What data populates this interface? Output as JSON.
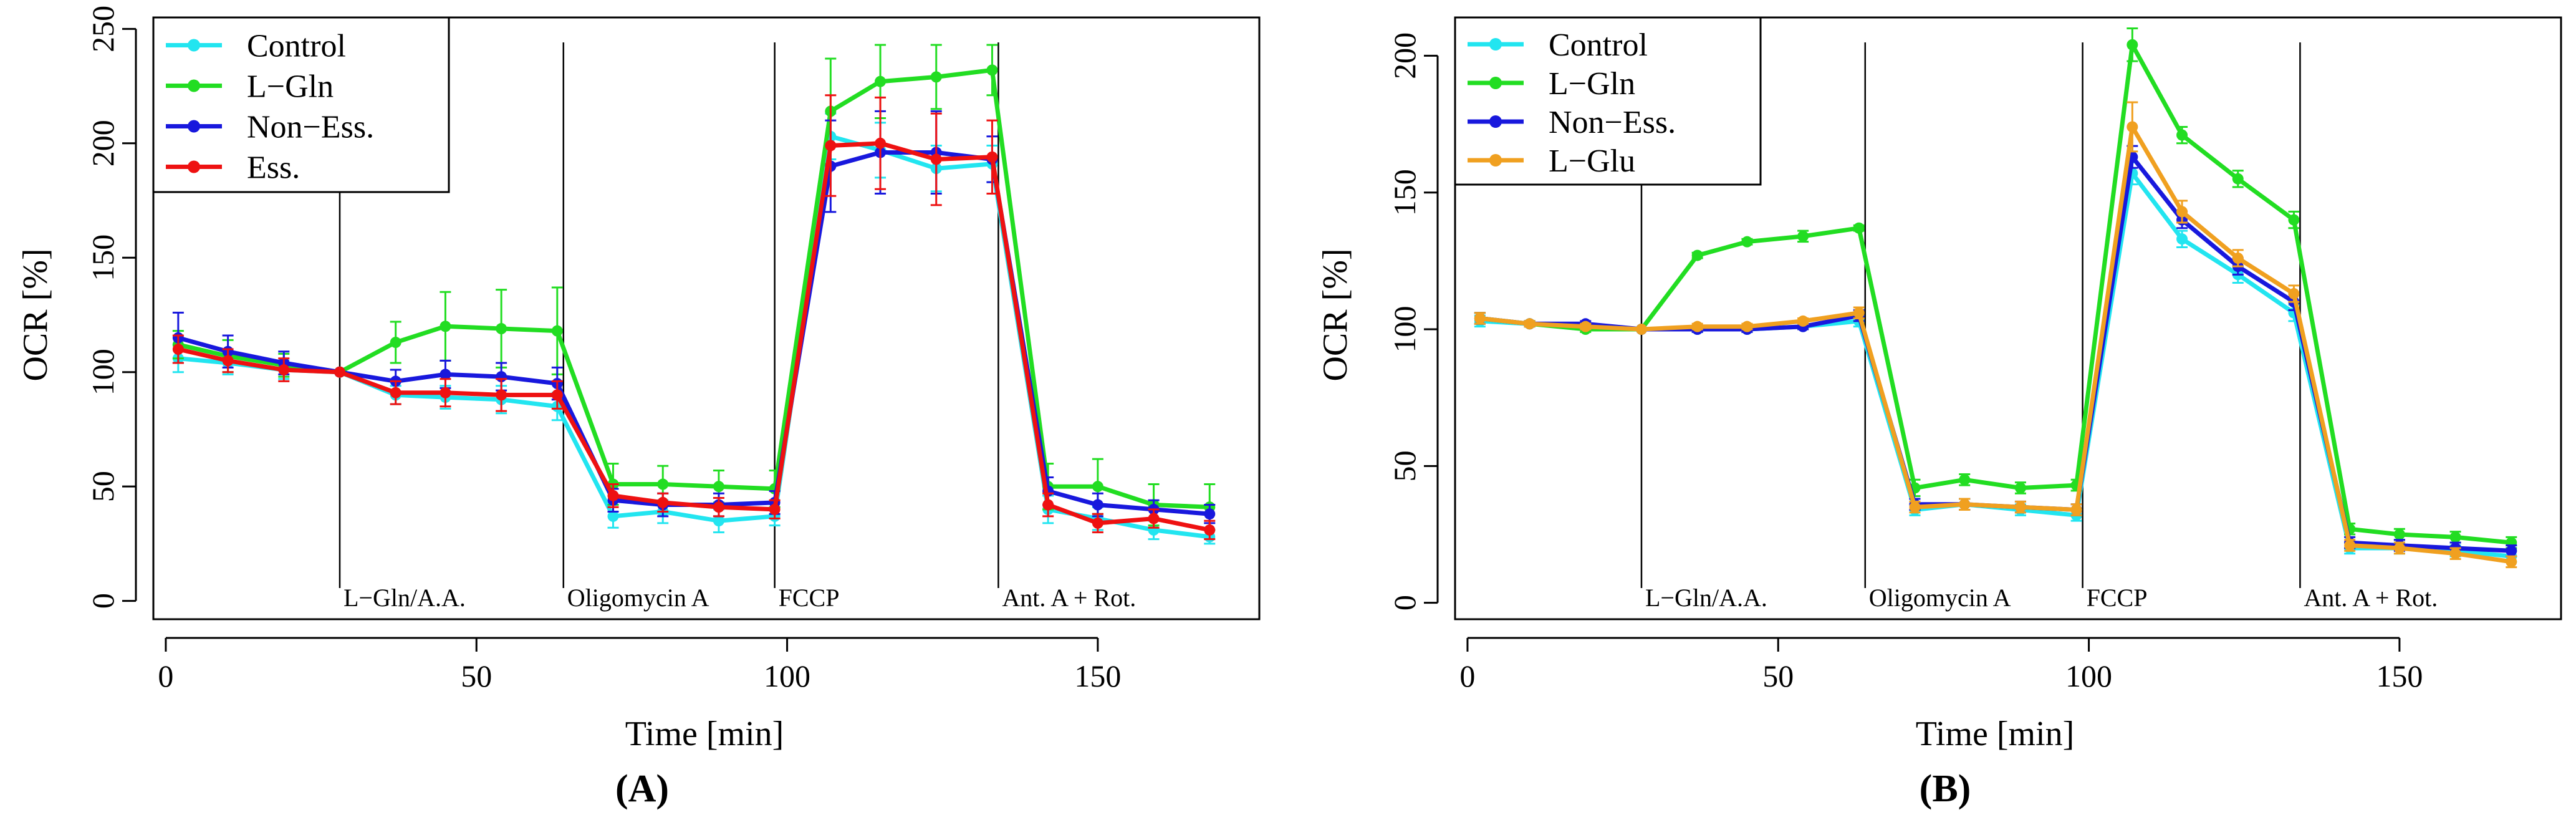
{
  "chart_data": [
    {
      "type": "line",
      "panel_label": "(A)",
      "xlabel": "Time [min]",
      "ylabel": "OCR [%]",
      "xlim": [
        -2,
        176
      ],
      "ylim": [
        -8,
        255
      ],
      "xticks": [
        0,
        50,
        100,
        150
      ],
      "yticks": [
        0,
        50,
        100,
        150,
        200,
        250
      ],
      "x": [
        2,
        10,
        19,
        28,
        37,
        45,
        54,
        63,
        72,
        80,
        89,
        98,
        107,
        115,
        124,
        133,
        142,
        150,
        159,
        168
      ],
      "legend_position": "top-left",
      "injections": [
        {
          "time": 28,
          "label": "L−Gln/A.A."
        },
        {
          "time": 64,
          "label": "Oligomycin A"
        },
        {
          "time": 98,
          "label": "FCCP"
        },
        {
          "time": 134,
          "label": "Ant. A + Rot."
        }
      ],
      "series": [
        {
          "name": "Control",
          "color": "#22e5f0",
          "values": [
            106,
            104,
            101,
            100,
            90,
            89,
            88,
            85,
            37,
            39,
            35,
            37,
            203,
            197,
            189,
            191,
            40,
            36,
            31,
            28
          ],
          "errors": [
            6,
            5,
            4,
            0,
            4,
            5,
            6,
            6,
            5,
            5,
            5,
            4,
            10,
            12,
            10,
            8,
            6,
            5,
            4,
            3
          ]
        },
        {
          "name": "L−Gln",
          "color": "#22dd22",
          "values": [
            112,
            107,
            103,
            100,
            113,
            120,
            119,
            118,
            51,
            51,
            50,
            49,
            214,
            227,
            229,
            232,
            50,
            50,
            42,
            41
          ],
          "errors": [
            6,
            7,
            5,
            0,
            9,
            15,
            17,
            19,
            9,
            8,
            7,
            8,
            23,
            16,
            14,
            11,
            10,
            12,
            9,
            10
          ]
        },
        {
          "name": "Non−Ess.",
          "color": "#1818dd",
          "values": [
            115,
            109,
            104,
            100,
            96,
            99,
            98,
            95,
            44,
            42,
            42,
            43,
            190,
            196,
            196,
            193,
            48,
            42,
            40,
            38
          ],
          "errors": [
            11,
            7,
            5,
            0,
            5,
            6,
            6,
            7,
            5,
            5,
            5,
            5,
            20,
            18,
            18,
            10,
            6,
            5,
            4,
            4
          ]
        },
        {
          "name": "Ess.",
          "color": "#ee1111",
          "values": [
            110,
            105,
            101,
            100,
            91,
            91,
            90,
            90,
            46,
            43,
            41,
            40,
            199,
            200,
            193,
            194,
            42,
            34,
            36,
            31
          ],
          "errors": [
            6,
            5,
            5,
            0,
            5,
            6,
            7,
            6,
            5,
            4,
            4,
            4,
            22,
            20,
            20,
            16,
            5,
            4,
            4,
            4
          ]
        }
      ]
    },
    {
      "type": "line",
      "panel_label": "(B)",
      "xlabel": "Time [min]",
      "ylabel": "OCR [%]",
      "xlim": [
        -2,
        176
      ],
      "ylim": [
        -6,
        214
      ],
      "xticks": [
        0,
        50,
        100,
        150
      ],
      "yticks": [
        0,
        50,
        100,
        150,
        200
      ],
      "x": [
        2,
        10,
        19,
        28,
        37,
        45,
        54,
        63,
        72,
        80,
        89,
        98,
        107,
        115,
        124,
        133,
        142,
        150,
        159,
        168
      ],
      "legend_position": "top-left",
      "injections": [
        {
          "time": 28,
          "label": "L−Gln/A.A."
        },
        {
          "time": 64,
          "label": "Oligomycin A"
        },
        {
          "time": 99,
          "label": "FCCP"
        },
        {
          "time": 134,
          "label": "Ant. A + Rot."
        }
      ],
      "series": [
        {
          "name": "Control",
          "color": "#22e5f0",
          "values": [
            103,
            102,
            101,
            100,
            100,
            100,
            101,
            103,
            34,
            36,
            34,
            32,
            157,
            133,
            120,
            106,
            20,
            20,
            19,
            17
          ],
          "errors": [
            2,
            1,
            1,
            0,
            1,
            1,
            1,
            2,
            2,
            2,
            2,
            2,
            4,
            3,
            3,
            3,
            2,
            2,
            2,
            2
          ]
        },
        {
          "name": "L−Gln",
          "color": "#22dd22",
          "values": [
            104,
            102,
            100,
            100,
            127,
            132,
            134,
            137,
            42,
            45,
            42,
            43,
            204,
            171,
            155,
            140,
            27,
            25,
            24,
            22
          ],
          "errors": [
            2,
            1,
            1,
            0,
            1,
            1,
            2,
            1,
            3,
            2,
            2,
            2,
            6,
            3,
            3,
            3,
            2,
            2,
            2,
            2
          ]
        },
        {
          "name": "Non−Ess.",
          "color": "#1818dd",
          "values": [
            104,
            102,
            102,
            100,
            100,
            100,
            101,
            105,
            36,
            36,
            35,
            34,
            163,
            140,
            123,
            110,
            22,
            21,
            20,
            19
          ],
          "errors": [
            2,
            1,
            1,
            0,
            1,
            1,
            1,
            2,
            2,
            2,
            2,
            2,
            4,
            3,
            3,
            3,
            2,
            2,
            2,
            2
          ]
        },
        {
          "name": "L−Glu",
          "color": "#f0a020",
          "values": [
            104,
            102,
            101,
            100,
            101,
            101,
            103,
            106,
            35,
            36,
            35,
            34,
            174,
            143,
            126,
            113,
            21,
            20,
            18,
            15
          ],
          "errors": [
            2,
            1,
            1,
            0,
            1,
            1,
            1,
            2,
            2,
            2,
            2,
            2,
            9,
            4,
            3,
            3,
            2,
            2,
            2,
            2
          ]
        }
      ]
    }
  ]
}
